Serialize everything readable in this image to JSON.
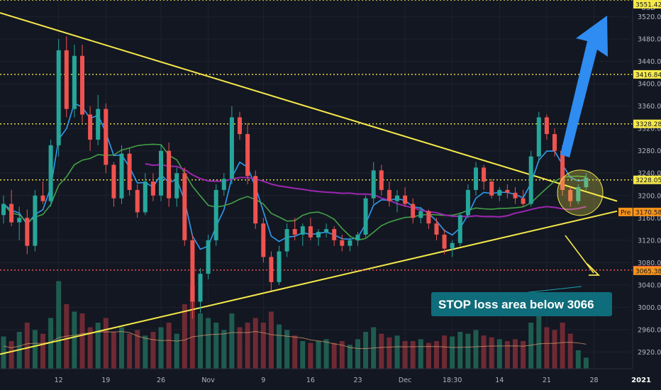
{
  "chart_data": {
    "type": "candlestick",
    "currency": "USD",
    "y_axis": {
      "min": 2890,
      "max": 3550,
      "ticks": [
        3520,
        3480,
        3440,
        3400,
        3360,
        3320,
        3280,
        3240,
        3200,
        3160,
        3120,
        3080,
        3040,
        3000,
        2960,
        2920
      ]
    },
    "x_ticks": [
      {
        "label": "12",
        "bar": 7
      },
      {
        "label": "19",
        "bar": 13
      },
      {
        "label": "26",
        "bar": 20
      },
      {
        "label": "Nov",
        "bar": 26
      },
      {
        "label": "9",
        "bar": 33
      },
      {
        "label": "16",
        "bar": 39
      },
      {
        "label": "23",
        "bar": 45
      },
      {
        "label": "Dec",
        "bar": 51
      },
      {
        "label": "18:30",
        "bar": 57
      },
      {
        "label": "14",
        "bar": 63
      },
      {
        "label": "21",
        "bar": 69
      },
      {
        "label": "28",
        "bar": 75
      },
      {
        "label": "2021",
        "bar": 81
      },
      {
        "label": "11",
        "bar": 87
      }
    ],
    "levels": [
      {
        "value": 3550.0,
        "label": "3551.42",
        "color": "#f5e94a"
      },
      {
        "value": 3416.84,
        "label": "3416.84",
        "color": "#f5e94a"
      },
      {
        "value": 3328.28,
        "label": "3328.28",
        "color": "#f5e94a"
      },
      {
        "value": 3228.05,
        "label": "3228.05",
        "color": "#f5e94a"
      },
      {
        "value": 3066.57,
        "label": "3066.57",
        "color": "#ef5350"
      }
    ],
    "price_tags": [
      {
        "value": 3170.58,
        "label": "3170.58",
        "tag": "Pre",
        "color": "#f7931a"
      },
      {
        "value": 3065.38,
        "label": "3065.38",
        "color": "#f7931a"
      }
    ],
    "annotation": "STOP loss area below 3066",
    "candles": [
      [
        3165,
        3200,
        3150,
        3185
      ],
      [
        3185,
        3210,
        3145,
        3152
      ],
      [
        3152,
        3180,
        3120,
        3160
      ],
      [
        3160,
        3175,
        3095,
        3110
      ],
      [
        3110,
        3210,
        3100,
        3200
      ],
      [
        3200,
        3225,
        3185,
        3190
      ],
      [
        3190,
        3300,
        3180,
        3290
      ],
      [
        3290,
        3480,
        3270,
        3460
      ],
      [
        3460,
        3485,
        3340,
        3355
      ],
      [
        3355,
        3470,
        3340,
        3450
      ],
      [
        3450,
        3470,
        3330,
        3345
      ],
      [
        3345,
        3360,
        3280,
        3300
      ],
      [
        3300,
        3380,
        3290,
        3355
      ],
      [
        3355,
        3365,
        3240,
        3255
      ],
      [
        3255,
        3260,
        3180,
        3195
      ],
      [
        3195,
        3290,
        3185,
        3275
      ],
      [
        3275,
        3285,
        3200,
        3210
      ],
      [
        3210,
        3220,
        3160,
        3170
      ],
      [
        3170,
        3240,
        3165,
        3225
      ],
      [
        3225,
        3240,
        3190,
        3200
      ],
      [
        3200,
        3290,
        3190,
        3280
      ],
      [
        3280,
        3295,
        3180,
        3195
      ],
      [
        3195,
        3250,
        3180,
        3240
      ],
      [
        3240,
        3250,
        3110,
        3120
      ],
      [
        3120,
        3130,
        2980,
        3010
      ],
      [
        3010,
        3070,
        2990,
        3060
      ],
      [
        3060,
        3130,
        3050,
        3120
      ],
      [
        3120,
        3220,
        3110,
        3210
      ],
      [
        3210,
        3240,
        3200,
        3230
      ],
      [
        3230,
        3360,
        3220,
        3340
      ],
      [
        3340,
        3350,
        3300,
        3310
      ],
      [
        3310,
        3330,
        3220,
        3235
      ],
      [
        3235,
        3245,
        3140,
        3150
      ],
      [
        3150,
        3160,
        3080,
        3090
      ],
      [
        3090,
        3100,
        3030,
        3045
      ],
      [
        3045,
        3110,
        3040,
        3100
      ],
      [
        3100,
        3150,
        3090,
        3140
      ],
      [
        3140,
        3160,
        3120,
        3130
      ],
      [
        3130,
        3150,
        3110,
        3145
      ],
      [
        3145,
        3160,
        3120,
        3125
      ],
      [
        3125,
        3140,
        3110,
        3135
      ],
      [
        3135,
        3150,
        3125,
        3140
      ],
      [
        3140,
        3145,
        3110,
        3120
      ],
      [
        3120,
        3130,
        3100,
        3110
      ],
      [
        3110,
        3125,
        3100,
        3120
      ],
      [
        3120,
        3135,
        3110,
        3130
      ],
      [
        3130,
        3200,
        3125,
        3195
      ],
      [
        3195,
        3260,
        3185,
        3245
      ],
      [
        3245,
        3255,
        3200,
        3210
      ],
      [
        3210,
        3225,
        3180,
        3190
      ],
      [
        3190,
        3210,
        3170,
        3200
      ],
      [
        3200,
        3215,
        3180,
        3185
      ],
      [
        3185,
        3195,
        3150,
        3160
      ],
      [
        3160,
        3180,
        3150,
        3172
      ],
      [
        3172,
        3175,
        3140,
        3150
      ],
      [
        3150,
        3160,
        3120,
        3130
      ],
      [
        3130,
        3140,
        3095,
        3105
      ],
      [
        3105,
        3120,
        3090,
        3115
      ],
      [
        3115,
        3170,
        3110,
        3165
      ],
      [
        3165,
        3220,
        3160,
        3210
      ],
      [
        3210,
        3260,
        3200,
        3250
      ],
      [
        3250,
        3255,
        3210,
        3225
      ],
      [
        3225,
        3230,
        3195,
        3200
      ],
      [
        3200,
        3215,
        3190,
        3210
      ],
      [
        3210,
        3220,
        3195,
        3205
      ],
      [
        3205,
        3215,
        3185,
        3195
      ],
      [
        3195,
        3210,
        3180,
        3185
      ],
      [
        3185,
        3280,
        3180,
        3270
      ],
      [
        3270,
        3350,
        3260,
        3340
      ],
      [
        3340,
        3345,
        3300,
        3310
      ],
      [
        3310,
        3320,
        3270,
        3280
      ],
      [
        3280,
        3290,
        3200,
        3210
      ],
      [
        3210,
        3215,
        3180,
        3190
      ],
      [
        3190,
        3220,
        3185,
        3215
      ],
      [
        3215,
        3240,
        3210,
        3232
      ]
    ],
    "volumes": [
      0.35,
      0.3,
      0.4,
      0.5,
      0.42,
      0.38,
      0.55,
      0.95,
      0.7,
      0.62,
      0.6,
      0.45,
      0.5,
      0.55,
      0.4,
      0.45,
      0.38,
      0.42,
      0.36,
      0.4,
      0.45,
      0.5,
      0.38,
      0.7,
      0.9,
      0.6,
      0.55,
      0.5,
      0.42,
      0.6,
      0.45,
      0.5,
      0.55,
      0.5,
      0.62,
      0.48,
      0.42,
      0.36,
      0.3,
      0.28,
      0.3,
      0.32,
      0.28,
      0.3,
      0.26,
      0.32,
      0.4,
      0.45,
      0.38,
      0.34,
      0.36,
      0.3,
      0.3,
      0.32,
      0.28,
      0.3,
      0.36,
      0.35,
      0.4,
      0.38,
      0.42,
      0.36,
      0.34,
      0.32,
      0.3,
      0.32,
      0.3,
      0.5,
      0.62,
      0.45,
      0.42,
      0.5,
      0.38,
      0.2,
      0.12
    ]
  }
}
